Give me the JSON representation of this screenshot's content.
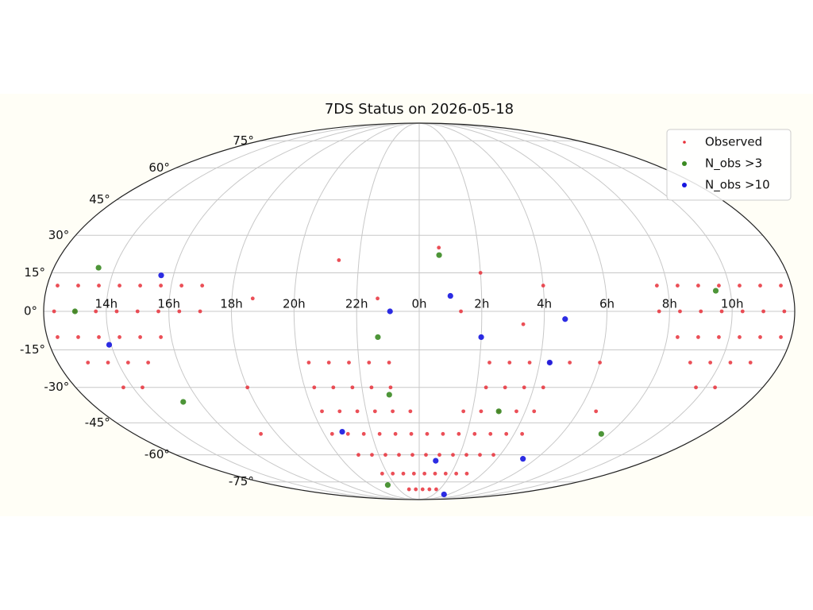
{
  "chart_data": {
    "type": "scatter",
    "title": "7DS Status on 2026-05-18",
    "projection": "mollweide",
    "xlim": [
      -180,
      180
    ],
    "ylim": [
      -90,
      90
    ],
    "xticks": [
      {
        "value": -150,
        "label": "14h"
      },
      {
        "value": -120,
        "label": "16h"
      },
      {
        "value": -90,
        "label": "18h"
      },
      {
        "value": -60,
        "label": "20h"
      },
      {
        "value": -30,
        "label": "22h"
      },
      {
        "value": 0,
        "label": "0h"
      },
      {
        "value": 30,
        "label": "2h"
      },
      {
        "value": 60,
        "label": "4h"
      },
      {
        "value": 90,
        "label": "6h"
      },
      {
        "value": 120,
        "label": "8h"
      },
      {
        "value": 150,
        "label": "10h"
      }
    ],
    "yticks": [
      {
        "value": -75,
        "label": "-75°"
      },
      {
        "value": -60,
        "label": "-60°"
      },
      {
        "value": -45,
        "label": "-45°"
      },
      {
        "value": -30,
        "label": "-30°"
      },
      {
        "value": -15,
        "label": "-15°"
      },
      {
        "value": 0,
        "label": "0°"
      },
      {
        "value": 15,
        "label": "15°"
      },
      {
        "value": 30,
        "label": "30°"
      },
      {
        "value": 45,
        "label": "45°"
      },
      {
        "value": 60,
        "label": "60°"
      },
      {
        "value": 75,
        "label": "75°"
      }
    ],
    "grid": true,
    "legend": "upper right",
    "series": [
      {
        "name": "Observed",
        "color": "#e8303a",
        "x": [
          -175,
          -165,
          -155,
          -145,
          -135,
          -125,
          -115,
          -105,
          -175,
          -165,
          -155,
          -145,
          -135,
          -125,
          -115,
          -105,
          -175,
          -165,
          -155,
          -145,
          -135,
          -125,
          -165,
          -155,
          -145,
          -135,
          -155,
          -145,
          115,
          125,
          135,
          145,
          155,
          165,
          175,
          115,
          125,
          135,
          145,
          155,
          165,
          175,
          125,
          135,
          145,
          155,
          165,
          175,
          135,
          145,
          155,
          165,
          145,
          155,
          -55,
          -45,
          -35,
          -25,
          -15,
          35,
          45,
          55,
          65,
          75,
          -55,
          -45,
          -35,
          -25,
          -15,
          35,
          45,
          55,
          65,
          -55,
          -45,
          -35,
          -25,
          -15,
          -5,
          25,
          35,
          45,
          55,
          65,
          -55,
          -45,
          -35,
          -25,
          -15,
          -5,
          5,
          15,
          25,
          35,
          45,
          55,
          65,
          -45,
          -35,
          -25,
          -15,
          -5,
          5,
          15,
          25,
          35,
          45,
          55,
          -35,
          -25,
          -15,
          -5,
          5,
          15,
          25,
          35,
          45,
          -15,
          -5,
          5,
          15,
          25,
          -40,
          10,
          30,
          60,
          -80,
          -20,
          20,
          50,
          90,
          100,
          -90,
          -100
        ],
        "values": [
          10,
          10,
          10,
          10,
          10,
          10,
          10,
          10,
          0,
          0,
          0,
          0,
          0,
          0,
          0,
          0,
          -10,
          -10,
          -10,
          -10,
          -10,
          -10,
          -20,
          -20,
          -20,
          -20,
          -30,
          -30,
          10,
          10,
          10,
          10,
          10,
          10,
          10,
          0,
          0,
          0,
          0,
          0,
          0,
          0,
          -10,
          -10,
          -10,
          -10,
          -10,
          -10,
          -20,
          -20,
          -20,
          -20,
          -30,
          -30,
          -20,
          -20,
          -20,
          -20,
          -20,
          -20,
          -20,
          -20,
          -20,
          -20,
          -30,
          -30,
          -30,
          -30,
          -30,
          -30,
          -30,
          -30,
          -30,
          -40,
          -40,
          -40,
          -40,
          -40,
          -40,
          -40,
          -40,
          -40,
          -40,
          -40,
          -50,
          -50,
          -50,
          -50,
          -50,
          -50,
          -50,
          -50,
          -50,
          -50,
          -50,
          -50,
          -50,
          -60,
          -60,
          -60,
          -60,
          -60,
          -60,
          -60,
          -60,
          -60,
          -60,
          -60,
          -70,
          -70,
          -70,
          -70,
          -70,
          -70,
          -70,
          -70,
          -70,
          -80,
          -80,
          -80,
          -80,
          -80,
          20,
          25,
          15,
          10,
          5,
          5,
          0,
          -5,
          -20,
          -40,
          -30,
          -50
        ]
      },
      {
        "name": "N_obs >3",
        "color": "#3a8a22",
        "x": [
          -16,
          115,
          -129,
          143,
          -165,
          -158,
          -39,
          -20,
          45,
          10
        ],
        "values": [
          -33,
          -50,
          -36,
          8,
          0,
          17,
          -77,
          -10,
          -40,
          22
        ]
      },
      {
        "name": "N_obs >10",
        "color": "#1515e0",
        "x": [
          -126,
          -151,
          -48,
          15,
          -14,
          30,
          70,
          65,
          13,
          80,
          51
        ],
        "values": [
          14,
          -13,
          -49,
          6,
          0,
          -10,
          -3,
          -20,
          -63,
          -62,
          -84
        ]
      }
    ]
  }
}
